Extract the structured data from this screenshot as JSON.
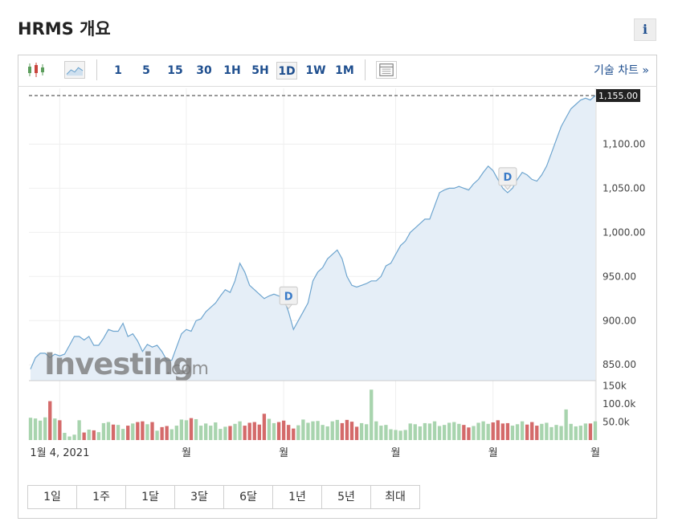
{
  "header": {
    "title": "HRMS 개요",
    "info_label": "i"
  },
  "toolbar": {
    "intervals": [
      "1",
      "5",
      "15",
      "30",
      "1H",
      "5H",
      "1D",
      "1W",
      "1M"
    ],
    "active_interval": "1D",
    "technical_chart_label": "기술 차트 »"
  },
  "ranges": [
    "1일",
    "1주",
    "1달",
    "3달",
    "6달",
    "1년",
    "5년",
    "최대"
  ],
  "watermark": {
    "brand": "Investing",
    "suffix": ".com"
  },
  "colors": {
    "line": "#6ea5cf",
    "area": "#e5eef7",
    "vol_up": "#a8d4ae",
    "vol_down": "#d46a6a",
    "last_price_bg": "#222222",
    "accent": "#1f4f8f"
  },
  "chart_data": {
    "type": "line",
    "title": "HRMS 개요",
    "last_price": 1155.0,
    "last_price_label": "1,155.00",
    "ylim": [
      832,
      1165
    ],
    "y_ticks": [
      850,
      900,
      950,
      1000,
      1050,
      1100
    ],
    "y_tick_labels": [
      "850.00",
      "900.00",
      "950.00",
      "1,000.00",
      "1,050.00",
      "1,100.00"
    ],
    "x_tick_labels": [
      "1월 4, 2021",
      "월",
      "월",
      "월",
      "월",
      "월"
    ],
    "x_tick_index": [
      6,
      32,
      52,
      75,
      95,
      116
    ],
    "dividend_markers": [
      {
        "label": "D",
        "index": 53
      },
      {
        "label": "D",
        "index": 98
      }
    ],
    "prices": [
      845,
      858,
      863,
      863,
      858,
      862,
      860,
      862,
      872,
      882,
      882,
      878,
      882,
      872,
      872,
      880,
      890,
      888,
      888,
      897,
      882,
      885,
      877,
      865,
      873,
      870,
      872,
      865,
      855,
      855,
      870,
      885,
      890,
      888,
      900,
      902,
      910,
      915,
      920,
      928,
      935,
      932,
      945,
      965,
      955,
      940,
      935,
      930,
      925,
      928,
      930,
      928,
      925,
      910,
      890,
      900,
      910,
      920,
      945,
      955,
      960,
      970,
      975,
      980,
      970,
      950,
      940,
      938,
      940,
      942,
      945,
      945,
      950,
      962,
      965,
      975,
      985,
      990,
      1000,
      1005,
      1010,
      1015,
      1015,
      1030,
      1045,
      1048,
      1050,
      1050,
      1052,
      1050,
      1048,
      1055,
      1060,
      1068,
      1075,
      1070,
      1060,
      1050,
      1045,
      1050,
      1060,
      1068,
      1065,
      1060,
      1058,
      1065,
      1075,
      1090,
      1105,
      1120,
      1130,
      1140,
      1145,
      1150,
      1152,
      1150,
      1155
    ],
    "volume_ylim": [
      0,
      165000
    ],
    "volume_ticks": [
      50000,
      100000,
      150000
    ],
    "volume_tick_labels": [
      "50.0k",
      "100.0k",
      "150k"
    ],
    "volumes": [
      62000,
      60000,
      54000,
      63000,
      108000,
      60000,
      55000,
      20000,
      10000,
      15000,
      55000,
      21000,
      29000,
      27000,
      22000,
      47000,
      50000,
      43000,
      42000,
      31000,
      40000,
      46000,
      50000,
      52000,
      44000,
      50000,
      26000,
      36000,
      39000,
      30000,
      40000,
      57000,
      55000,
      61000,
      58000,
      40000,
      46000,
      40000,
      49000,
      31000,
      37000,
      39000,
      45000,
      52000,
      40000,
      48000,
      50000,
      43000,
      73000,
      59000,
      47000,
      50000,
      54000,
      42000,
      32000,
      41000,
      57000,
      48000,
      52000,
      53000,
      42000,
      38000,
      52000,
      56000,
      47000,
      56000,
      51000,
      37000,
      47000,
      44000,
      140000,
      52000,
      40000,
      42000,
      30000,
      28000,
      26000,
      28000,
      46000,
      44000,
      38000,
      47000,
      46000,
      52000,
      39000,
      42000,
      48000,
      50000,
      45000,
      42000,
      35000,
      39000,
      48000,
      52000,
      45000,
      49000,
      55000,
      46000,
      47000,
      40000,
      44000,
      52000,
      43000,
      50000,
      40000,
      45000,
      48000,
      36000,
      42000,
      39000,
      85000,
      45000,
      38000,
      40000,
      46000,
      46000,
      52000
    ]
  }
}
